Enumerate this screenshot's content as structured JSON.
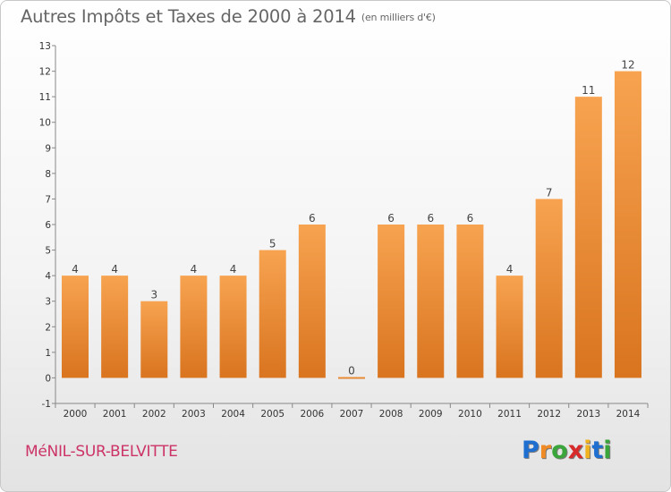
{
  "header": {
    "title": "Autres Impôts et Taxes de 2000 à 2014",
    "unit": "(en milliers d'€)"
  },
  "footer": {
    "commune": "MéNIL-SUR-BELVITTE",
    "logo_letters": [
      "P",
      "r",
      "o",
      "x",
      "i",
      "t",
      "i"
    ],
    "logo_colors": [
      "#1e6fd0",
      "#f08a24",
      "#3aa53a",
      "#d82a2a",
      "#f0b21e",
      "#1e6fd0",
      "#3aa53a"
    ]
  },
  "chart_data": {
    "type": "bar",
    "title": "Autres Impôts et Taxes de 2000 à 2014",
    "categories": [
      "2000",
      "2001",
      "2002",
      "2003",
      "2004",
      "2005",
      "2006",
      "2007",
      "2008",
      "2009",
      "2010",
      "2011",
      "2012",
      "2013",
      "2014"
    ],
    "values": [
      4,
      4,
      3,
      4,
      4,
      5,
      6,
      0,
      6,
      6,
      6,
      4,
      7,
      11,
      12
    ],
    "value_labels": [
      "4",
      "4",
      "3",
      "4",
      "4",
      "5",
      "6",
      "0",
      "6",
      "6",
      "6",
      "4",
      "7",
      "11",
      "12"
    ],
    "ylim": [
      -1,
      13
    ],
    "yticks": [
      "-1",
      "0",
      "1",
      "2",
      "3",
      "4",
      "5",
      "6",
      "7",
      "8",
      "9",
      "10",
      "11",
      "12",
      "13"
    ],
    "grid": false,
    "bar_color_light": "#f7a350",
    "bar_color_dark": "#d9741f"
  }
}
